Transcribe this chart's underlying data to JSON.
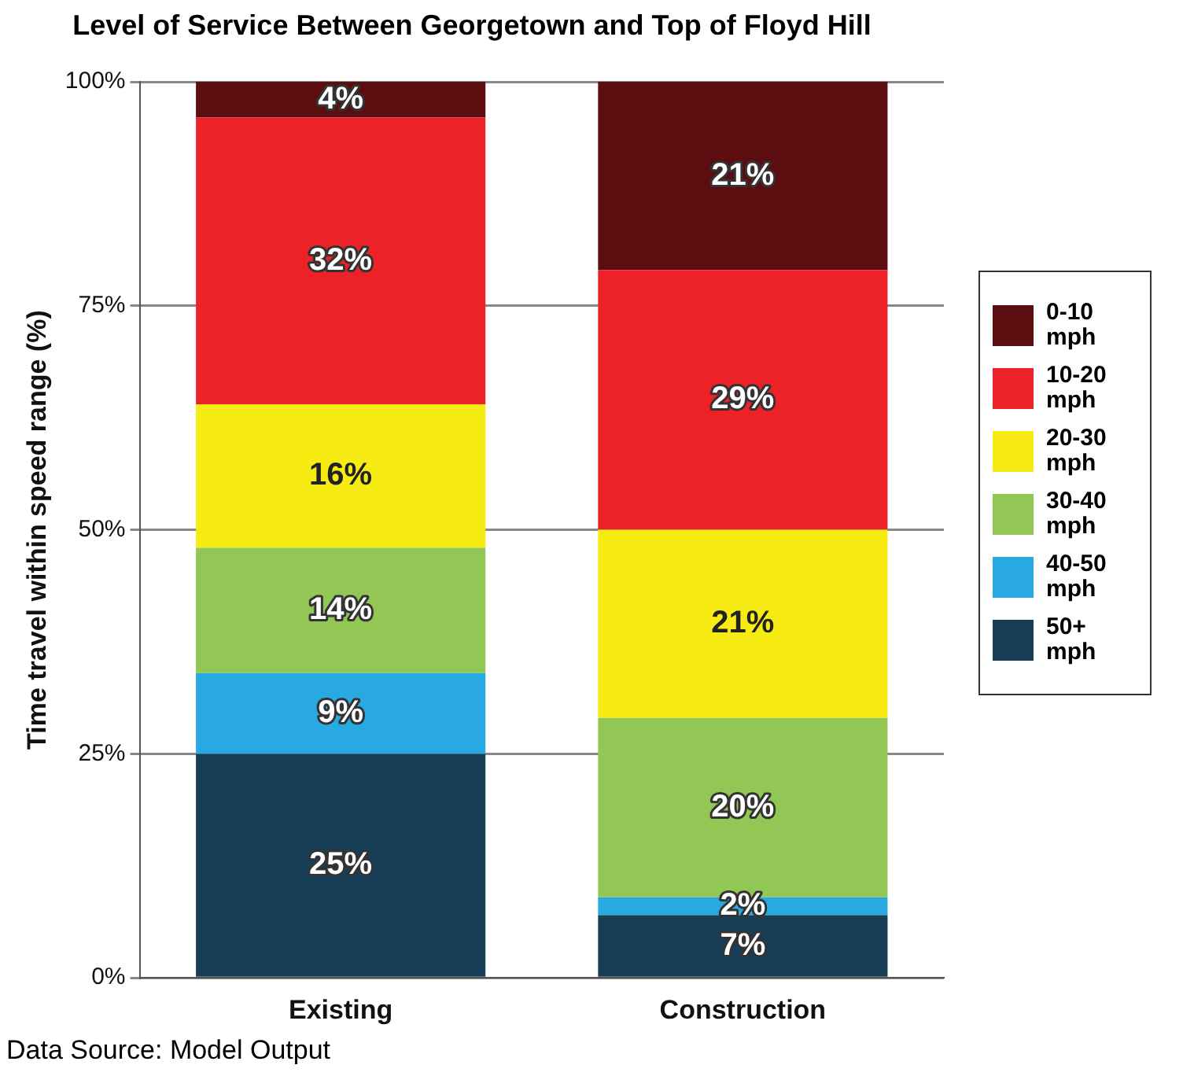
{
  "chart_data": {
    "type": "bar",
    "stacked": true,
    "title": "Level of Service Between Georgetown and Top of Floyd Hill",
    "ylabel": "Time travel within speed range (%)",
    "categories": [
      "Existing",
      "Construction"
    ],
    "series": [
      {
        "name": "50+ mph",
        "color": "#163e56",
        "values": [
          25,
          7
        ],
        "value_labels": [
          "25%",
          "7%"
        ]
      },
      {
        "name": "40-50 mph",
        "color": "#29a9e1",
        "values": [
          9,
          2
        ],
        "value_labels": [
          "9%",
          "2%"
        ]
      },
      {
        "name": "30-40 mph",
        "color": "#92c756",
        "values": [
          14,
          20
        ],
        "value_labels": [
          "14%",
          "20%"
        ]
      },
      {
        "name": "20-30 mph",
        "color": "#f6ec14",
        "values": [
          16,
          21
        ],
        "value_labels": [
          "16%",
          "21%"
        ]
      },
      {
        "name": "10-20 mph",
        "color": "#ec2228",
        "values": [
          32,
          29
        ],
        "value_labels": [
          "32%",
          "29%"
        ]
      },
      {
        "name": "0-10 mph",
        "color": "#5c0d0f",
        "values": [
          4,
          21
        ],
        "value_labels": [
          "4%",
          "21%"
        ]
      }
    ],
    "ylim": [
      0,
      100
    ],
    "yticks": [
      {
        "value": 0,
        "label": "0%"
      },
      {
        "value": 25,
        "label": "25%"
      },
      {
        "value": 50,
        "label": "50%"
      },
      {
        "value": 75,
        "label": "75%"
      },
      {
        "value": 100,
        "label": "100%"
      }
    ],
    "grid": "y",
    "legend": "right",
    "annotations": [
      "Data Source: Model Output"
    ]
  }
}
